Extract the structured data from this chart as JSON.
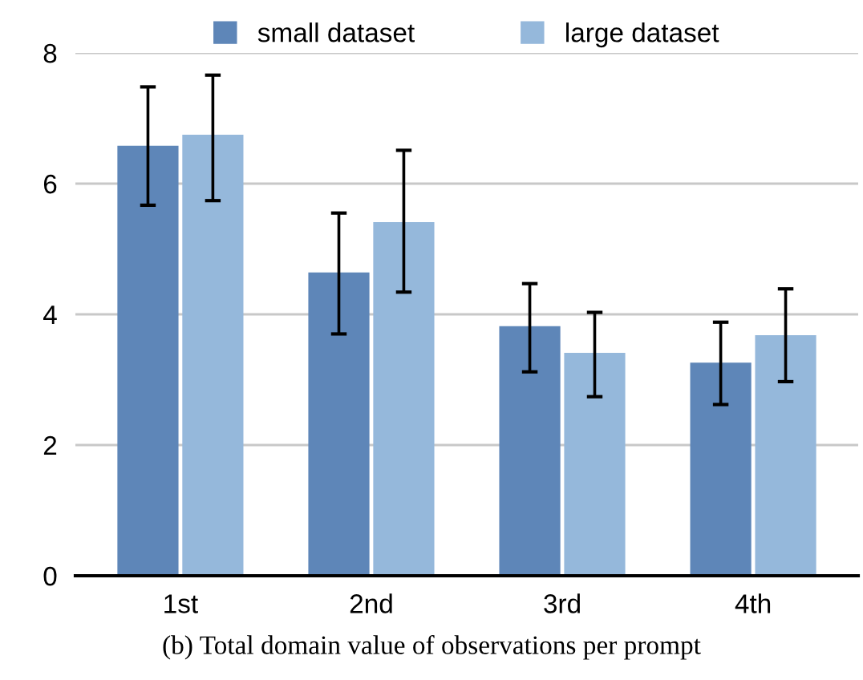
{
  "chart_data": {
    "type": "bar",
    "categories": [
      "1st",
      "2nd",
      "3rd",
      "4th"
    ],
    "series": [
      {
        "name": "small dataset",
        "color": "#5e86b8",
        "values": [
          6.58,
          4.64,
          3.82,
          3.26
        ],
        "errors": [
          [
            5.67,
            7.48
          ],
          [
            3.7,
            5.55
          ],
          [
            3.12,
            4.47
          ],
          [
            2.62,
            3.88
          ]
        ]
      },
      {
        "name": "large dataset",
        "color": "#95b8db",
        "values": [
          6.75,
          5.41,
          3.41,
          3.68
        ],
        "errors": [
          [
            5.74,
            7.66
          ],
          [
            4.34,
            6.51
          ],
          [
            2.74,
            4.03
          ],
          [
            2.97,
            4.39
          ]
        ]
      }
    ],
    "ylim": [
      0,
      8
    ],
    "yticks": [
      0,
      2,
      4,
      6,
      8
    ],
    "grid": "y",
    "legend": "top",
    "annotations": [
      "(b) Total domain value of observations per prompt"
    ]
  }
}
